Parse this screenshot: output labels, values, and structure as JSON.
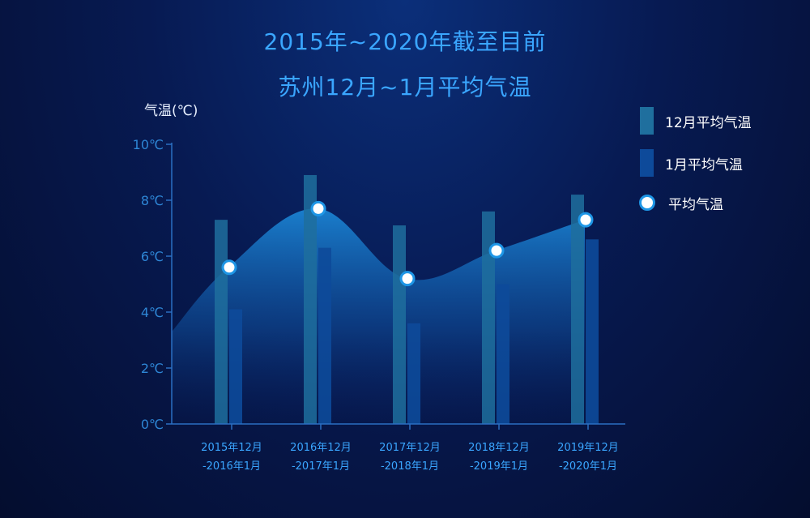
{
  "chart_data": {
    "type": "bar",
    "title_line1": "2015年~2020年截至目前",
    "title_line2": "苏州12月~1月平均气温",
    "ylabel": "气温(℃)",
    "ylim": [
      0,
      10
    ],
    "yticks": [
      {
        "value": 0,
        "label": "0℃"
      },
      {
        "value": 2,
        "label": "2℃"
      },
      {
        "value": 4,
        "label": "4℃"
      },
      {
        "value": 6,
        "label": "6℃"
      },
      {
        "value": 8,
        "label": "8℃"
      },
      {
        "value": 10,
        "label": "10℃"
      }
    ],
    "categories": [
      {
        "line1": "2015年12月",
        "line2": "-2016年1月"
      },
      {
        "line1": "2016年12月",
        "line2": "-2017年1月"
      },
      {
        "line1": "2017年12月",
        "line2": "-2018年1月"
      },
      {
        "line1": "2018年12月",
        "line2": "-2019年1月"
      },
      {
        "line1": "2019年12月",
        "line2": "-2020年1月"
      }
    ],
    "series": [
      {
        "name": "12月平均气温",
        "kind": "bar",
        "color": "#1f6f9e",
        "values": [
          7.3,
          8.9,
          7.1,
          7.6,
          8.2
        ]
      },
      {
        "name": "1月平均气温",
        "kind": "bar",
        "color": "#0d4a9a",
        "values": [
          4.1,
          6.3,
          3.6,
          5.0,
          6.6
        ]
      },
      {
        "name": "平均气温",
        "kind": "area-line",
        "color": "#1e96e6",
        "values": [
          5.6,
          7.7,
          5.2,
          6.2,
          7.3
        ]
      }
    ],
    "grid": false,
    "legend_position": "top-right"
  }
}
